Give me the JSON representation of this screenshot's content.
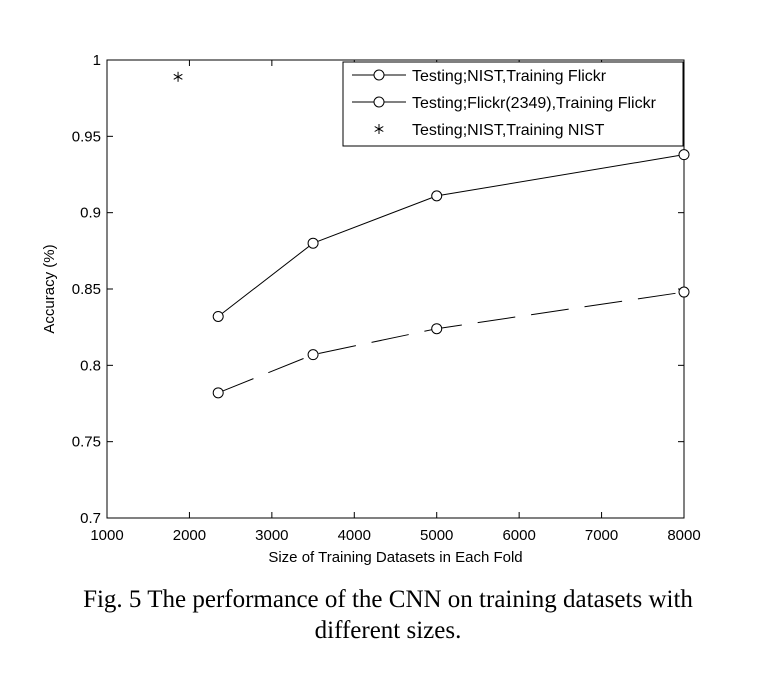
{
  "chart_data": {
    "type": "line",
    "xlabel": "Size of Training Datasets in Each Fold",
    "ylabel": "Accuracy (%)",
    "xlim": [
      1000,
      8000
    ],
    "ylim": [
      0.7,
      1
    ],
    "xticks": [
      "1000",
      "2000",
      "3000",
      "4000",
      "5000",
      "6000",
      "7000",
      "8000"
    ],
    "yticks": [
      "0.7",
      "0.75",
      "0.8",
      "0.85",
      "0.9",
      "0.95",
      "1"
    ],
    "grid": false,
    "legend_position": "top-right",
    "series": [
      {
        "name": "Testing;NIST,Training Flickr",
        "marker": "circle",
        "line": "solid",
        "x": [
          2349,
          3500,
          5000,
          8000
        ],
        "y": [
          0.832,
          0.88,
          0.911,
          0.938
        ]
      },
      {
        "name": "Testing;Flickr(2349),Training Flickr",
        "marker": "circle",
        "line": "dashed",
        "x": [
          2349,
          3500,
          5000,
          8000
        ],
        "y": [
          0.782,
          0.807,
          0.824,
          0.848
        ]
      },
      {
        "name": "Testing;NIST,Training NIST",
        "marker": "star",
        "line": "none",
        "x": [
          1862
        ],
        "y": [
          0.989
        ]
      }
    ]
  },
  "caption": {
    "line1": "Fig. 5 The performance of the CNN on training datasets with",
    "line2": "different sizes."
  }
}
